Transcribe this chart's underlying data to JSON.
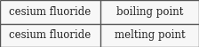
{
  "rows": [
    [
      "cesium fluoride",
      "boiling point"
    ],
    [
      "cesium fluoride",
      "melting point"
    ]
  ],
  "bg_color": "#ffffff",
  "cell_bg_color": "#f7f7f7",
  "border_color": "#555555",
  "text_color": "#222222",
  "font_size": 8.5,
  "col_split": 0.505,
  "fig_width": 2.24,
  "fig_height": 0.53,
  "border_lw": 1.0
}
